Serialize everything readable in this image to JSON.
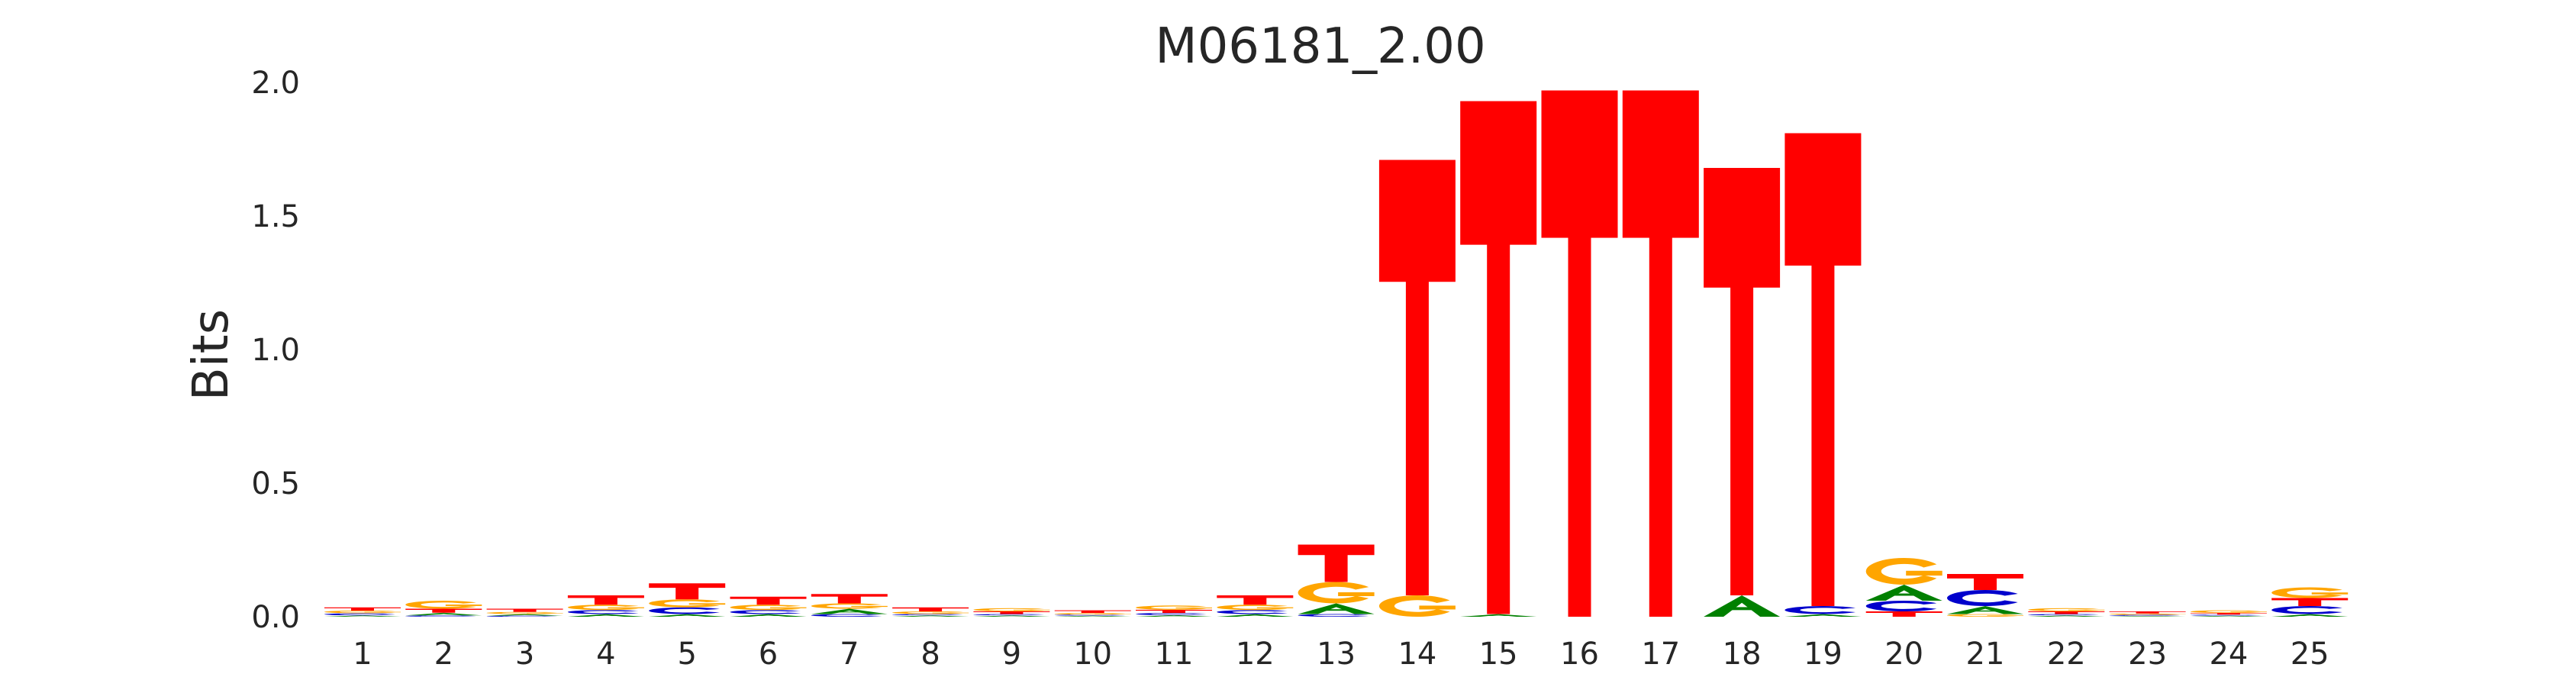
{
  "chart_data": {
    "type": "sequence-logo",
    "title": "M06181_2.00",
    "ylabel": "Bits",
    "xlabel": "",
    "ylim": [
      0,
      2.0
    ],
    "yticks": [
      "0.0",
      "0.5",
      "1.0",
      "1.5",
      "2.0"
    ],
    "ytick_values": [
      0.0,
      0.5,
      1.0,
      1.5,
      2.0
    ],
    "grid": false,
    "colors": {
      "A": "#008000",
      "C": "#0000cc",
      "G": "#ffa500",
      "T": "#ff0000"
    },
    "positions": [
      {
        "label": "1",
        "letters": [
          [
            "A",
            0.005
          ],
          [
            "C",
            0.008
          ],
          [
            "G",
            0.01
          ],
          [
            "T",
            0.012
          ]
        ]
      },
      {
        "label": "2",
        "letters": [
          [
            "C",
            0.005
          ],
          [
            "A",
            0.01
          ],
          [
            "T",
            0.015
          ],
          [
            "G",
            0.03
          ]
        ]
      },
      {
        "label": "3",
        "letters": [
          [
            "C",
            0.004
          ],
          [
            "A",
            0.006
          ],
          [
            "G",
            0.008
          ],
          [
            "T",
            0.012
          ]
        ]
      },
      {
        "label": "4",
        "letters": [
          [
            "A",
            0.01
          ],
          [
            "C",
            0.015
          ],
          [
            "G",
            0.02
          ],
          [
            "T",
            0.035
          ]
        ]
      },
      {
        "label": "5",
        "letters": [
          [
            "A",
            0.01
          ],
          [
            "C",
            0.025
          ],
          [
            "G",
            0.03
          ],
          [
            "T",
            0.06
          ]
        ]
      },
      {
        "label": "6",
        "letters": [
          [
            "A",
            0.01
          ],
          [
            "C",
            0.015
          ],
          [
            "G",
            0.02
          ],
          [
            "T",
            0.03
          ]
        ]
      },
      {
        "label": "7",
        "letters": [
          [
            "C",
            0.01
          ],
          [
            "A",
            0.02
          ],
          [
            "G",
            0.02
          ],
          [
            "T",
            0.035
          ]
        ]
      },
      {
        "label": "8",
        "letters": [
          [
            "A",
            0.005
          ],
          [
            "C",
            0.005
          ],
          [
            "G",
            0.01
          ],
          [
            "T",
            0.015
          ]
        ]
      },
      {
        "label": "9",
        "letters": [
          [
            "A",
            0.005
          ],
          [
            "C",
            0.005
          ],
          [
            "T",
            0.01
          ],
          [
            "G",
            0.012
          ]
        ]
      },
      {
        "label": "10",
        "letters": [
          [
            "A",
            0.004
          ],
          [
            "C",
            0.004
          ],
          [
            "G",
            0.006
          ],
          [
            "T",
            0.01
          ]
        ]
      },
      {
        "label": "11",
        "letters": [
          [
            "A",
            0.006
          ],
          [
            "C",
            0.008
          ],
          [
            "T",
            0.012
          ],
          [
            "G",
            0.016
          ]
        ]
      },
      {
        "label": "12",
        "letters": [
          [
            "A",
            0.01
          ],
          [
            "C",
            0.015
          ],
          [
            "G",
            0.02
          ],
          [
            "T",
            0.035
          ]
        ]
      },
      {
        "label": "13",
        "letters": [
          [
            "C",
            0.01
          ],
          [
            "A",
            0.04
          ],
          [
            "G",
            0.08
          ],
          [
            "T",
            0.14
          ]
        ]
      },
      {
        "label": "14",
        "letters": [
          [
            "G",
            0.08
          ],
          [
            "T",
            1.63
          ]
        ]
      },
      {
        "label": "15",
        "letters": [
          [
            "A",
            0.01
          ],
          [
            "T",
            1.92
          ]
        ]
      },
      {
        "label": "16",
        "letters": [
          [
            "T",
            1.97
          ]
        ]
      },
      {
        "label": "17",
        "letters": [
          [
            "T",
            1.97
          ]
        ]
      },
      {
        "label": "18",
        "letters": [
          [
            "A",
            0.08
          ],
          [
            "T",
            1.6
          ]
        ]
      },
      {
        "label": "19",
        "letters": [
          [
            "A",
            0.01
          ],
          [
            "C",
            0.03
          ],
          [
            "T",
            1.77
          ]
        ]
      },
      {
        "label": "20",
        "letters": [
          [
            "T",
            0.02
          ],
          [
            "C",
            0.04
          ],
          [
            "A",
            0.06
          ],
          [
            "G",
            0.1
          ]
        ]
      },
      {
        "label": "21",
        "letters": [
          [
            "G",
            0.01
          ],
          [
            "A",
            0.03
          ],
          [
            "C",
            0.06
          ],
          [
            "T",
            0.06
          ]
        ]
      },
      {
        "label": "22",
        "letters": [
          [
            "A",
            0.005
          ],
          [
            "C",
            0.005
          ],
          [
            "T",
            0.01
          ],
          [
            "G",
            0.012
          ]
        ]
      },
      {
        "label": "23",
        "letters": [
          [
            "A",
            0.003
          ],
          [
            "C",
            0.004
          ],
          [
            "G",
            0.005
          ],
          [
            "T",
            0.008
          ]
        ]
      },
      {
        "label": "24",
        "letters": [
          [
            "A",
            0.004
          ],
          [
            "C",
            0.004
          ],
          [
            "T",
            0.006
          ],
          [
            "G",
            0.01
          ]
        ]
      },
      {
        "label": "25",
        "letters": [
          [
            "A",
            0.01
          ],
          [
            "C",
            0.03
          ],
          [
            "T",
            0.03
          ],
          [
            "G",
            0.04
          ]
        ]
      }
    ]
  }
}
